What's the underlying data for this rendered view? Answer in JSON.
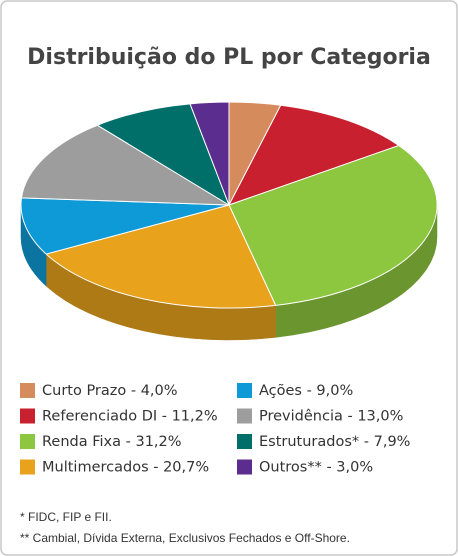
{
  "chart_data": {
    "type": "pie",
    "title": "Distribuição do PL  por Categoria",
    "categories": [
      "Curto Prazo - 4,0%",
      "Referenciado DI - 11,2%",
      "Renda Fixa - 31,2%",
      "Multimercados - 20,7%",
      "Ações - 9,0%",
      "Previdência - 13,0%",
      "Estruturados* - 7,9%",
      "Outros** - 3,0%"
    ],
    "values": [
      4.0,
      11.2,
      31.2,
      20.7,
      9.0,
      13.0,
      7.9,
      3.0
    ],
    "colors": [
      "#d68b5c",
      "#c8202f",
      "#8dc63f",
      "#e8a21c",
      "#0e9ad7",
      "#9d9d9d",
      "#006f6a",
      "#5b2d8e"
    ],
    "notes": [
      "* FIDC, FIP e FII.",
      "** Cambial, Dívida Externa, Exclusivos Fechados e Off-Shore."
    ]
  }
}
